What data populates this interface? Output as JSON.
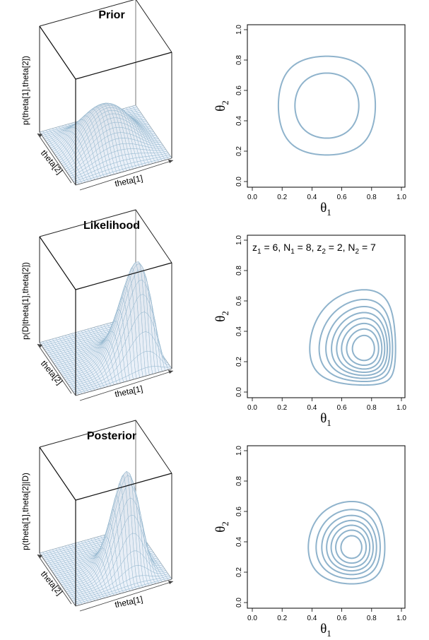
{
  "chart_data": [
    {
      "type": "surface",
      "title": "Prior",
      "xlabel": "theta[1]",
      "ylabel": "theta[2]",
      "zlabel": "p(theta[1],theta[2])",
      "xlim": [
        0,
        1
      ],
      "ylim": [
        0,
        1
      ],
      "distribution": {
        "family": "product-beta",
        "theta1": [
          3,
          3
        ],
        "theta2": [
          3,
          3
        ]
      },
      "color": "#8fb3cc"
    },
    {
      "type": "contour",
      "xlabel": "θ1",
      "ylabel": "θ2",
      "xlim": [
        0,
        1
      ],
      "ylim": [
        0,
        1
      ],
      "xticks": [
        "0.0",
        "0.2",
        "0.4",
        "0.6",
        "0.8",
        "1.0"
      ],
      "yticks": [
        "0.0",
        "0.2",
        "0.4",
        "0.6",
        "0.8",
        "1.0"
      ],
      "distribution": {
        "family": "product-beta",
        "theta1": [
          3,
          3
        ],
        "theta2": [
          3,
          3
        ]
      },
      "levels": 2,
      "color": "#8fb3cc"
    },
    {
      "type": "surface",
      "title": "Likelihood",
      "xlabel": "theta[1]",
      "ylabel": "theta[2]",
      "zlabel": "p(D|theta[1],theta[2])",
      "xlim": [
        0,
        1
      ],
      "ylim": [
        0,
        1
      ],
      "distribution": {
        "family": "product-beta",
        "theta1": [
          7,
          3
        ],
        "theta2": [
          3,
          6
        ]
      },
      "color": "#8fb3cc"
    },
    {
      "type": "contour",
      "xlabel": "θ1",
      "ylabel": "θ2",
      "xlim": [
        0,
        1
      ],
      "ylim": [
        0,
        1
      ],
      "xticks": [
        "0.0",
        "0.2",
        "0.4",
        "0.6",
        "0.8",
        "1.0"
      ],
      "yticks": [
        "0.0",
        "0.2",
        "0.4",
        "0.6",
        "0.8",
        "1.0"
      ],
      "annotation": {
        "z1": "6",
        "N1": "8",
        "z2": "2",
        "N2": "7"
      },
      "distribution": {
        "family": "product-beta",
        "theta1": [
          7,
          3
        ],
        "theta2": [
          3,
          6
        ]
      },
      "levels": 8,
      "color": "#8fb3cc"
    },
    {
      "type": "surface",
      "title": "Posterior",
      "xlabel": "theta[1]",
      "ylabel": "theta[2]",
      "zlabel": "p(theta[1],theta[2]|D)",
      "xlim": [
        0,
        1
      ],
      "ylim": [
        0,
        1
      ],
      "distribution": {
        "family": "product-beta",
        "theta1": [
          9,
          5
        ],
        "theta2": [
          5,
          8
        ]
      },
      "color": "#8fb3cc"
    },
    {
      "type": "contour",
      "xlabel": "θ1",
      "ylabel": "θ2",
      "xlim": [
        0,
        1
      ],
      "ylim": [
        0,
        1
      ],
      "xticks": [
        "0.0",
        "0.2",
        "0.4",
        "0.6",
        "0.8",
        "1.0"
      ],
      "yticks": [
        "0.0",
        "0.2",
        "0.4",
        "0.6",
        "0.8",
        "1.0"
      ],
      "distribution": {
        "family": "product-beta",
        "theta1": [
          9,
          5
        ],
        "theta2": [
          5,
          8
        ]
      },
      "levels": 7,
      "color": "#8fb3cc"
    }
  ]
}
